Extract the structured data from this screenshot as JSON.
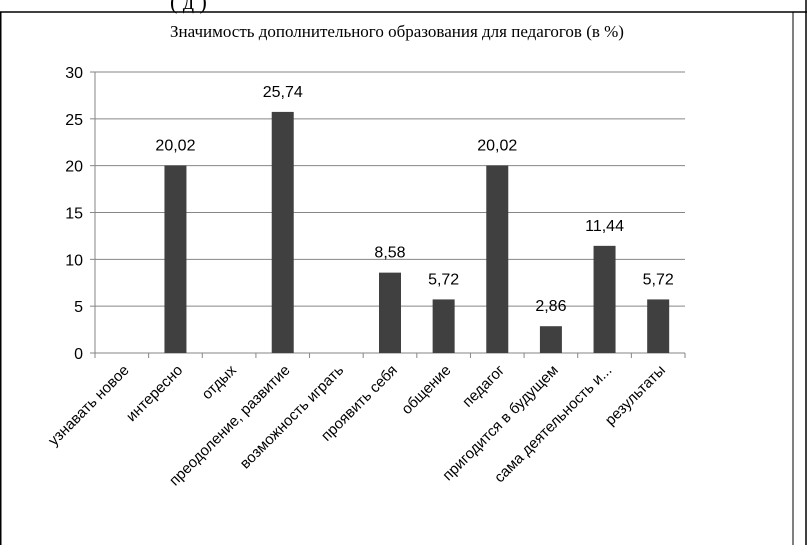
{
  "header_fragment": "(                              д                )",
  "chart_data": {
    "type": "bar",
    "title": "Значимость дополнительного  образования для педагогов (в %)",
    "categories": [
      "узнавать новое",
      "интересно",
      "отдых",
      "преодоление, развитие",
      "возможность играть",
      "проявить себя",
      "общение",
      "педагог",
      "пригодится в будущем",
      "сама деятельность и...",
      "результаты"
    ],
    "values": [
      0,
      20.02,
      0,
      25.74,
      0,
      8.58,
      5.72,
      20.02,
      2.86,
      11.44,
      5.72
    ],
    "data_labels": [
      "",
      "20,02",
      "",
      "25,74",
      "",
      "8,58",
      "5,72",
      "20,02",
      "2,86",
      "11,44",
      "5,72"
    ],
    "yticks": [
      "0",
      "5",
      "10",
      "15",
      "20",
      "25",
      "30"
    ],
    "ylim": [
      0,
      30
    ],
    "grid": true,
    "legend": "none",
    "xlabel": "",
    "ylabel": "",
    "bar_color": "#404040",
    "grid_color": "#868686"
  }
}
